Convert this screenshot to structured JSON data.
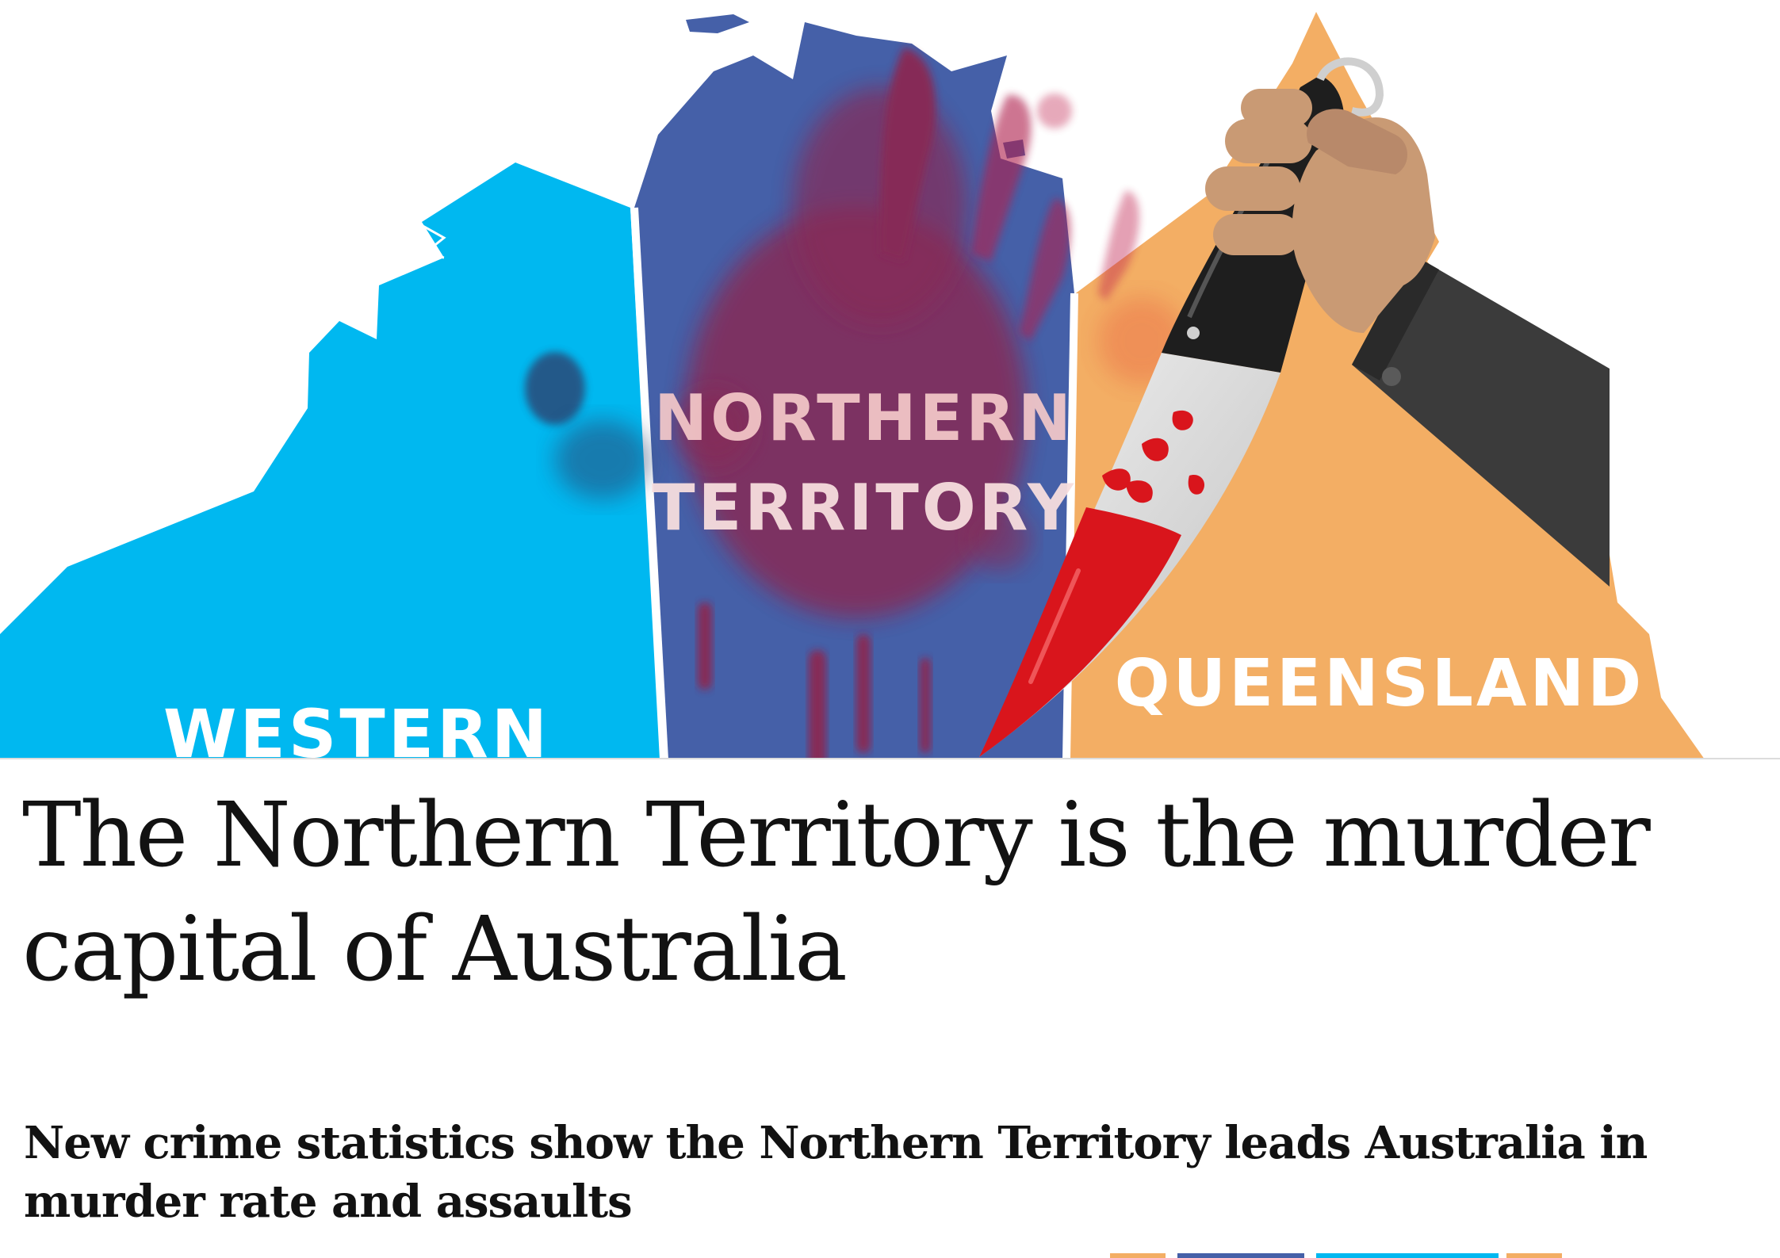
{
  "hero": {
    "labels": {
      "western": "WESTERN",
      "northern_line1": "NORTHERN",
      "northern_line2": "TERRITORY",
      "queensland": "QUEENSLAND"
    },
    "colors": {
      "western_australia": "#00b8f0",
      "northern_territory": "#4560a8",
      "queensland": "#f3ae64",
      "blood": "#9a1c40",
      "knife_blood": "#d9151c",
      "sleeve": "#3b3b3b",
      "skin": "#c99a74"
    },
    "icons": {
      "knife": "knife-icon",
      "hand": "hand-icon",
      "blood_splatter": "blood-splatter-icon"
    }
  },
  "article": {
    "headline": "The Northern Territory is the murder capital of Australia",
    "standfirst": "New crime statistics show the Northern Territory leads Australia in murder rate and assaults"
  }
}
